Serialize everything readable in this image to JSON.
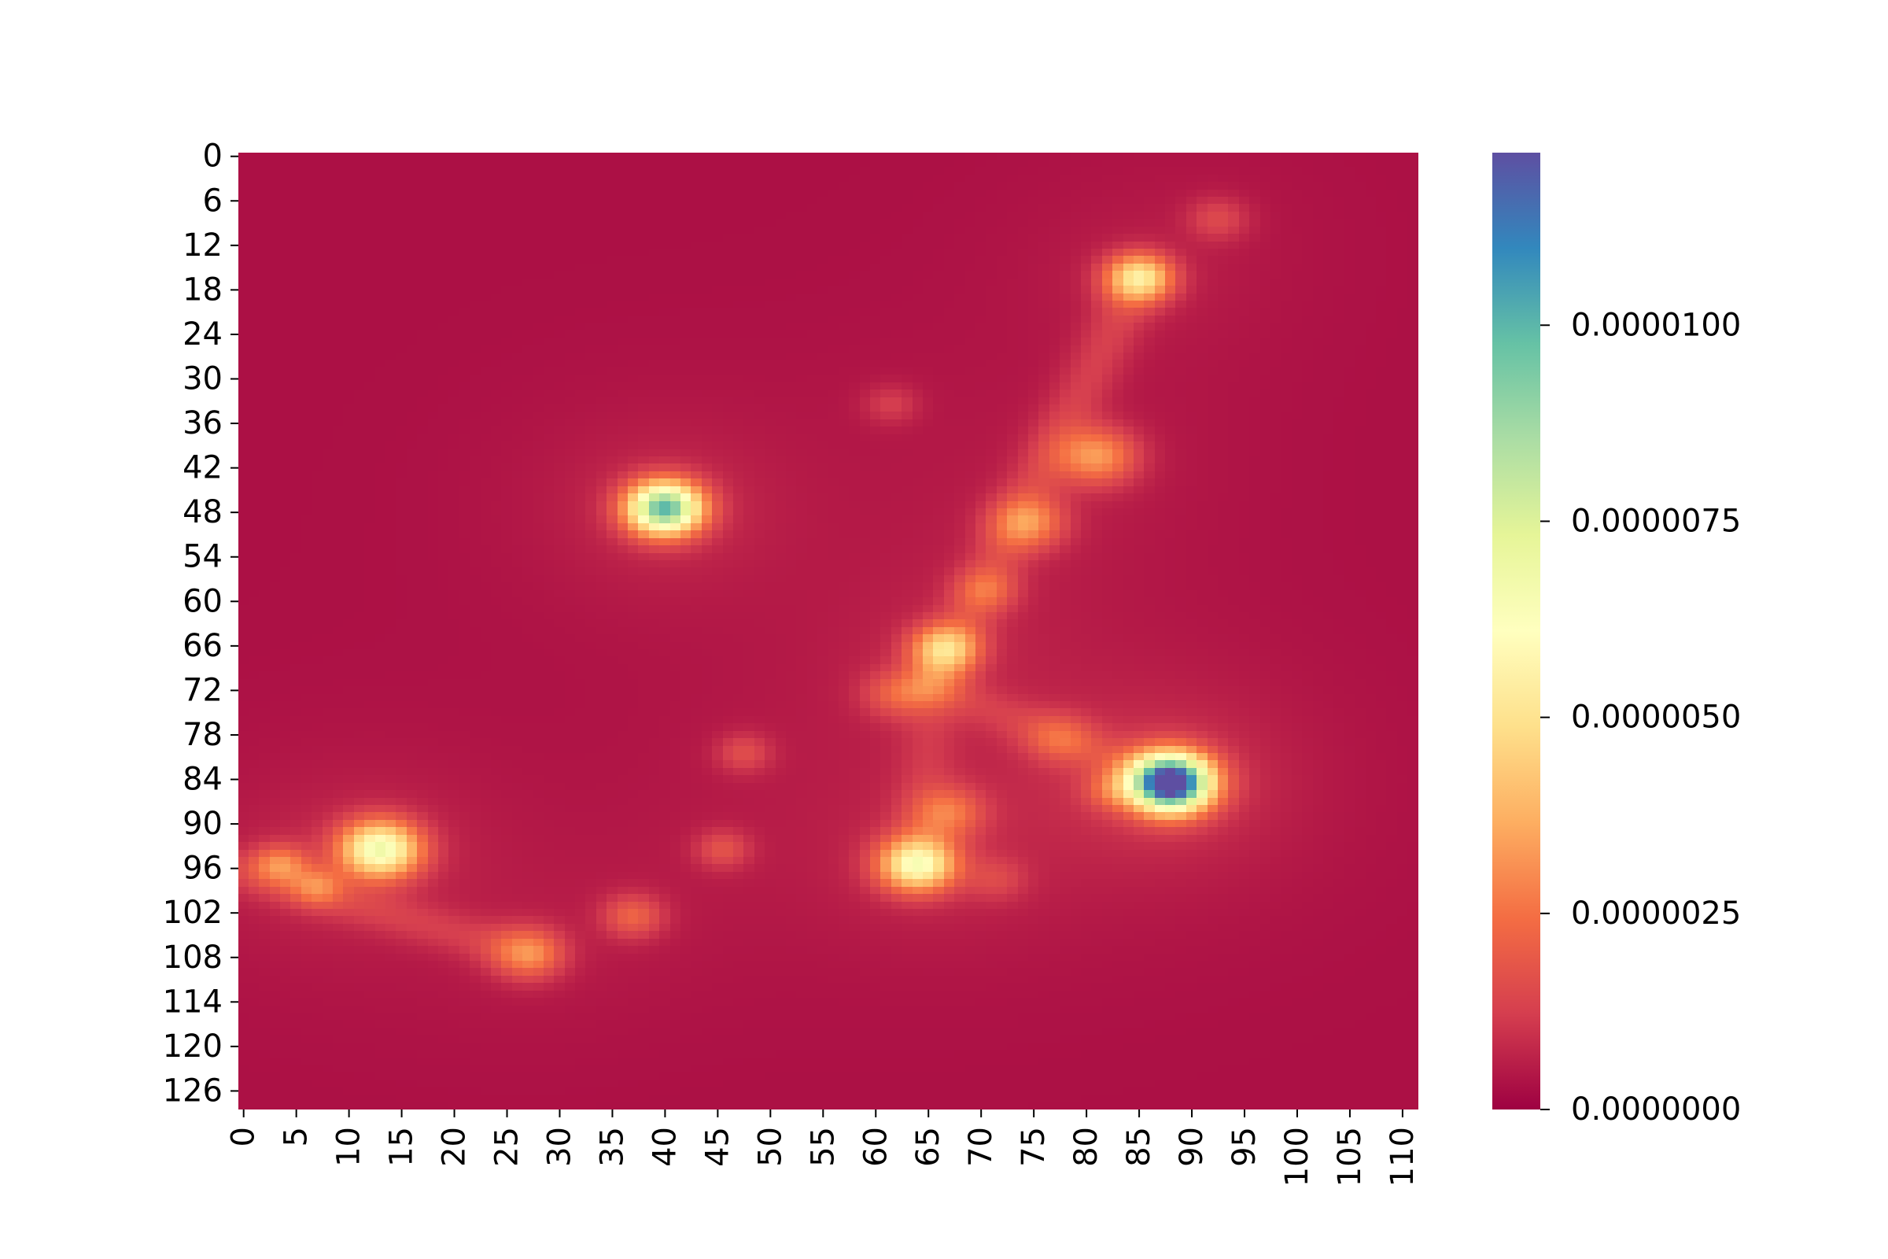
{
  "chart_data": {
    "type": "heatmap",
    "title": "",
    "xlabel": "",
    "ylabel": "",
    "n_cols": 112,
    "n_rows": 129,
    "x_ticks": [
      0,
      5,
      10,
      15,
      20,
      25,
      30,
      35,
      40,
      45,
      50,
      55,
      60,
      65,
      70,
      75,
      80,
      85,
      90,
      95,
      100,
      105,
      110
    ],
    "y_ticks": [
      0,
      6,
      12,
      18,
      24,
      30,
      36,
      42,
      48,
      54,
      60,
      66,
      72,
      78,
      84,
      90,
      96,
      102,
      108,
      114,
      120,
      126
    ],
    "colormap": "Spectral",
    "colormap_stops": [
      "#9e0142",
      "#d53e4f",
      "#f46d43",
      "#fdae61",
      "#fee08b",
      "#ffffbf",
      "#e6f598",
      "#abdda4",
      "#66c2a5",
      "#3288bd",
      "#5e4fa2"
    ],
    "vmin": 0.0,
    "vmax": 1.22e-05,
    "colorbar_ticks": [
      {
        "value": 0.0,
        "label": "0.0000000"
      },
      {
        "value": 2.5e-06,
        "label": "0.0000025"
      },
      {
        "value": 5e-06,
        "label": "0.0000050"
      },
      {
        "value": 7.5e-06,
        "label": "0.0000075"
      },
      {
        "value": 1e-05,
        "label": "0.0000100"
      }
    ],
    "background_value": 3e-07,
    "hotspots": [
      {
        "x": 88.5,
        "y": 85,
        "peak": 1.22e-05,
        "spread": 2.6
      },
      {
        "x": 40.5,
        "y": 48,
        "peak": 8.8e-06,
        "spread": 2.4
      },
      {
        "x": 13.5,
        "y": 94,
        "peak": 5.8e-06,
        "spread": 2.6
      },
      {
        "x": 64.5,
        "y": 96,
        "peak": 5e-06,
        "spread": 2.5
      },
      {
        "x": 85.5,
        "y": 17,
        "peak": 4e-06,
        "spread": 2.2
      },
      {
        "x": 67.0,
        "y": 67,
        "peak": 3.6e-06,
        "spread": 2.2
      },
      {
        "x": 81.5,
        "y": 41,
        "peak": 2.6e-06,
        "spread": 2.6
      },
      {
        "x": 75.0,
        "y": 50,
        "peak": 2.2e-06,
        "spread": 2.4
      },
      {
        "x": 27.5,
        "y": 108,
        "peak": 2e-06,
        "spread": 2.4
      },
      {
        "x": 4.0,
        "y": 96,
        "peak": 2.2e-06,
        "spread": 1.8
      },
      {
        "x": 7.5,
        "y": 99,
        "peak": 1.7e-06,
        "spread": 1.7
      },
      {
        "x": 37.5,
        "y": 103,
        "peak": 1.6e-06,
        "spread": 2.0
      },
      {
        "x": 67.5,
        "y": 89,
        "peak": 1.8e-06,
        "spread": 2.3
      },
      {
        "x": 62.5,
        "y": 73,
        "peak": 1.4e-06,
        "spread": 2.2
      },
      {
        "x": 71.0,
        "y": 59,
        "peak": 1.3e-06,
        "spread": 2.0
      },
      {
        "x": 78.0,
        "y": 79,
        "peak": 1.2e-06,
        "spread": 2.2
      },
      {
        "x": 83.0,
        "y": 86,
        "peak": 1.2e-06,
        "spread": 1.8
      },
      {
        "x": 48.0,
        "y": 81,
        "peak": 1.1e-06,
        "spread": 1.8
      },
      {
        "x": 46.0,
        "y": 94,
        "peak": 1.2e-06,
        "spread": 1.8
      },
      {
        "x": 93.0,
        "y": 9,
        "peak": 1e-06,
        "spread": 2.0
      },
      {
        "x": 62.0,
        "y": 34,
        "peak": 8e-07,
        "spread": 1.8
      },
      {
        "x": 72.0,
        "y": 98,
        "peak": 8e-07,
        "spread": 2.0
      }
    ],
    "ridges": [
      {
        "from": [
          85.5,
          17
        ],
        "to": [
          66,
          72
        ],
        "value": 8e-07
      },
      {
        "from": [
          66,
          72
        ],
        "to": [
          88.5,
          85
        ],
        "value": 6e-07
      },
      {
        "from": [
          66,
          72
        ],
        "to": [
          64.5,
          96
        ],
        "value": 5e-07
      },
      {
        "from": [
          0,
          97
        ],
        "to": [
          27.5,
          108
        ],
        "value": 7e-07
      }
    ]
  }
}
